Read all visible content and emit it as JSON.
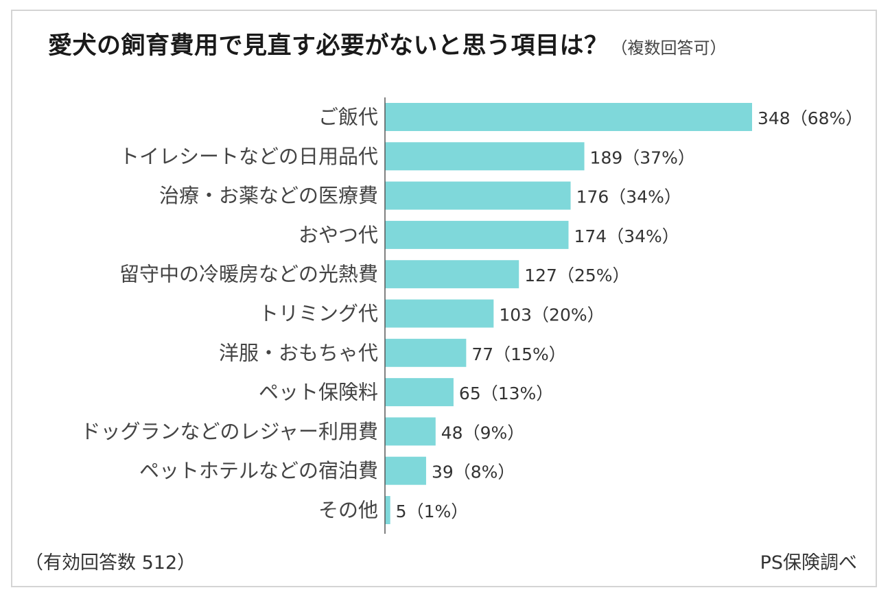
{
  "title": "愛犬の飼育費用で見直す必要がないと思う項目は？",
  "subtitle": "（複数回答可）",
  "footer": {
    "respondents": "（有効回答数 512）",
    "source": "PS保険調べ"
  },
  "colors": {
    "bar": "#7fd8da",
    "axis": "#555555"
  },
  "chart_data": {
    "type": "bar",
    "orientation": "horizontal",
    "categories": [
      "ご飯代",
      "トイレシートなどの日用品代",
      "治療・お薬などの医療費",
      "おやつ代",
      "留守中の冷暖房などの光熱費",
      "トリミング代",
      "洋服・おもちゃ代",
      "ペット保険料",
      "ドッグランなどのレジャー利用費",
      "ペットホテルなどの宿泊費",
      "その他"
    ],
    "values": [
      348,
      189,
      176,
      174,
      127,
      103,
      77,
      65,
      48,
      39,
      5
    ],
    "data_labels": [
      "348（68%）",
      "189（37%）",
      "176（34%）",
      "174（34%）",
      "127（25%）",
      "103（20%）",
      "77（15%）",
      "65（13%）",
      "48（9%）",
      "39（8%）",
      "5（1%）"
    ],
    "xlim": [
      0,
      348
    ],
    "grid": false,
    "legend": "none"
  }
}
